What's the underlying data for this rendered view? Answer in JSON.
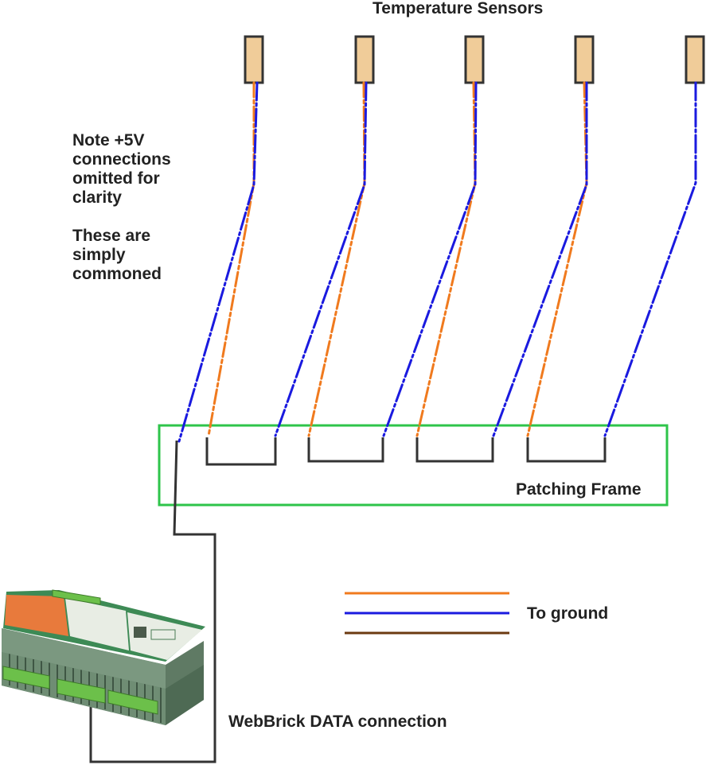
{
  "title": "Temperature Sensors",
  "note": {
    "line1": "Note +5V",
    "line2": "connections",
    "line3": "omitted for",
    "line4": "clarity",
    "line5": "These are",
    "line6": "simply",
    "line7": "commoned"
  },
  "patching_frame_label": "Patching Frame",
  "legend_label": "To ground",
  "webbrick_label": "WebBrick DATA connection",
  "sensor_count": 5,
  "colors": {
    "sensor_fill": "#f0cc99",
    "sensor_stroke": "#333333",
    "blue_wire": "#1a1adf",
    "orange_wire": "#f07a1e",
    "brown_wire": "#6b3a10",
    "patching_frame": "#2ec44a",
    "bridge_wire": "#333333",
    "device_green": "#3d8a55"
  },
  "icons": [
    "temperature-sensor-icon",
    "webbrick-device-icon"
  ]
}
